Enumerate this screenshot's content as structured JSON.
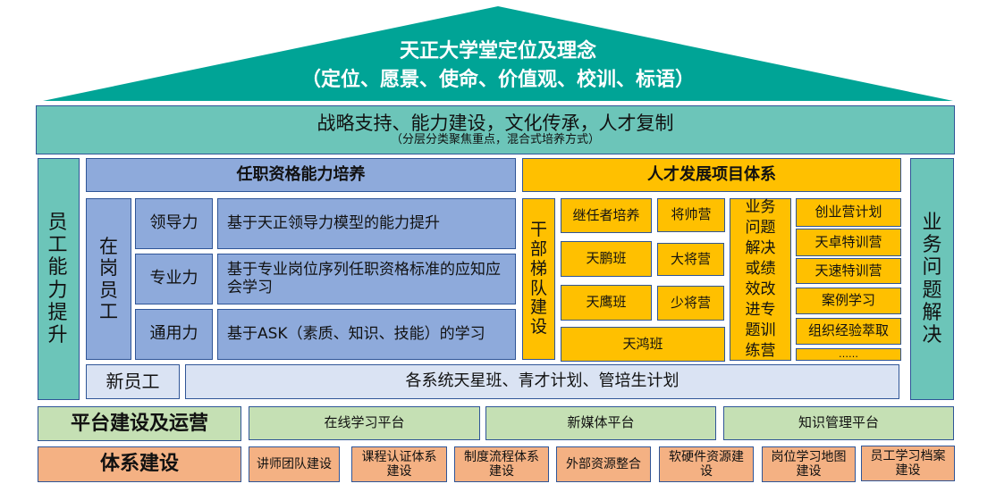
{
  "roof": {
    "title": "天正大学堂定位及理念",
    "subtitle": "（定位、愿景、使命、价值观、校训、标语）",
    "color": "#00a496"
  },
  "band": {
    "title": "战略支持、能力建设，文化传承，人才复制",
    "subtitle": "（分层分类聚焦重点，混合式培养方式）"
  },
  "left_pillar": "员工能力提升",
  "right_pillar": "业务问题解决",
  "qualification": {
    "header": "任职资格能力培养",
    "group": "在岗员工",
    "rows": [
      {
        "label": "领导力",
        "desc": "基于天正领导力模型的能力提升"
      },
      {
        "label": "专业力",
        "desc": "基于专业岗位序列任职资格标准的应知应会学习"
      },
      {
        "label": "通用力",
        "desc": "基于ASK（素质、知识、技能）的学习"
      }
    ],
    "new_label": "新员工",
    "new_desc": "各系统天星班、青才计划、管培生计划"
  },
  "talent": {
    "header": "人才发展项目体系",
    "cadre": "干部梯队建设",
    "items": [
      "继任者培养",
      "将帅营",
      "天鹏班",
      "大将营",
      "天鹰班",
      "少将营",
      "天鸿班"
    ],
    "business": "业务问题解决或绩效改进专题训练营",
    "camps": [
      "创业营计划",
      "天卓特训营",
      "天速特训营",
      "案例学习",
      "组织经验萃取",
      "……"
    ]
  },
  "platform": {
    "label": "平台建设及运营",
    "items": [
      "在线学习平台",
      "新媒体平台",
      "知识管理平台"
    ]
  },
  "system": {
    "label": "体系建设",
    "items": [
      "讲师团队建设",
      "课程认证体系建设",
      "制度流程体系建设",
      "外部资源整合",
      "软硬件资源建设",
      "岗位学习地图建设",
      "员工学习档案建设"
    ]
  }
}
